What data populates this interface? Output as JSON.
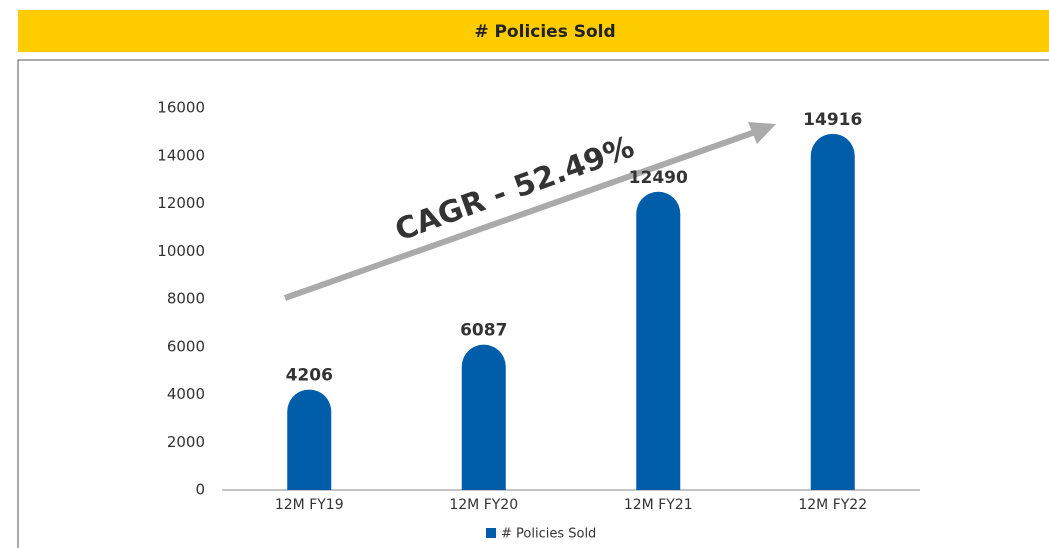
{
  "chart_data": {
    "type": "bar",
    "title": "# Policies Sold",
    "annotation": "CAGR - 52.49%",
    "categories": [
      "12M FY19",
      "12M FY20",
      "12M FY21",
      "12M FY22"
    ],
    "series": [
      {
        "name": "# Policies Sold",
        "color": "#005daa",
        "values": [
          4206,
          6087,
          12490,
          14916
        ]
      }
    ],
    "ylim": [
      0,
      16000
    ],
    "yticks": [
      0,
      2000,
      4000,
      6000,
      8000,
      10000,
      12000,
      14000,
      16000
    ],
    "grid": false,
    "legend": "bottom"
  }
}
